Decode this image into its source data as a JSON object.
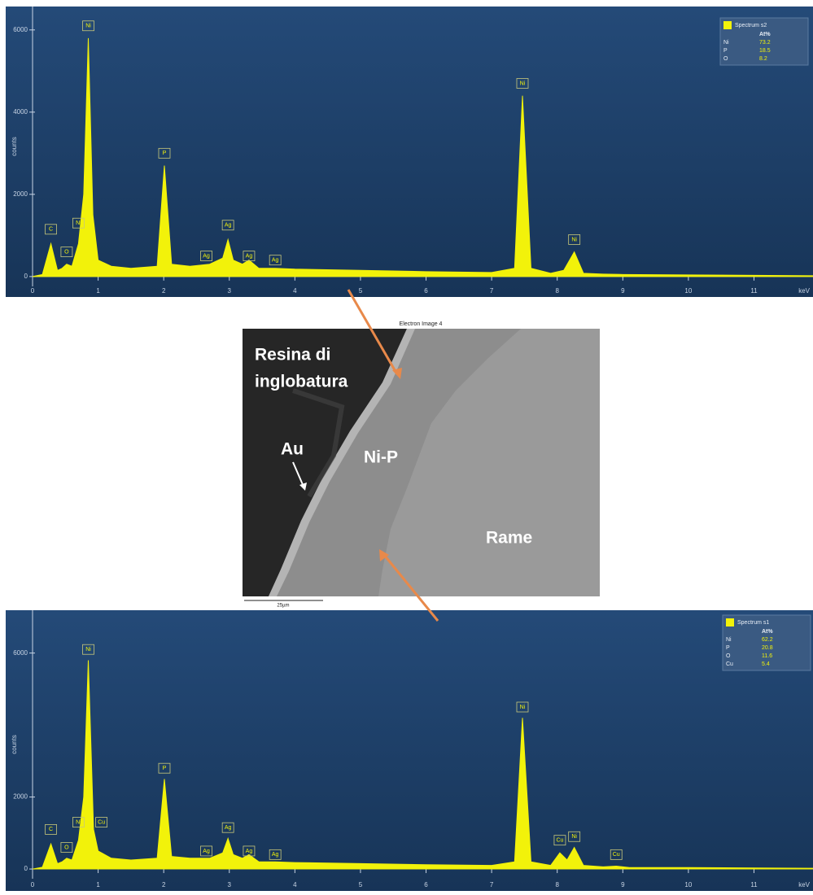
{
  "chart_data": [
    {
      "type": "line",
      "x_label": "keV",
      "y_label": "counts",
      "color": "#f2f20a",
      "x": [
        0,
        0.15,
        0.28,
        0.38,
        0.45,
        0.52,
        0.6,
        0.7,
        0.78,
        0.85,
        0.92,
        1.0,
        1.2,
        1.5,
        1.9,
        2.01,
        2.12,
        2.4,
        2.7,
        2.9,
        2.98,
        3.06,
        3.2,
        3.3,
        3.45,
        3.7,
        4.0,
        5.0,
        6.0,
        7.0,
        7.35,
        7.47,
        7.6,
        7.9,
        8.1,
        8.26,
        8.4,
        8.7,
        9,
        10,
        11,
        11.9
      ],
      "values": [
        0,
        50,
        800,
        150,
        200,
        300,
        250,
        800,
        2000,
        5800,
        1500,
        400,
        250,
        200,
        250,
        2700,
        300,
        250,
        300,
        450,
        900,
        400,
        300,
        400,
        200,
        200,
        180,
        150,
        120,
        100,
        200,
        4400,
        200,
        80,
        150,
        600,
        80,
        60,
        50,
        40,
        30,
        20
      ],
      "xlim": [
        0,
        11.9
      ],
      "ylim": [
        -240,
        6570
      ],
      "xticks": [
        0,
        1,
        2,
        3,
        4,
        5,
        6,
        7,
        8,
        9,
        10,
        11
      ],
      "yticks": [
        0,
        2000,
        4000,
        6000
      ],
      "peak_labels": [
        {
          "text": "C",
          "x": 0.28,
          "y": 1150
        },
        {
          "text": "O",
          "x": 0.52,
          "y": 600
        },
        {
          "text": "Ni",
          "x": 0.7,
          "y": 1300
        },
        {
          "text": "Ni",
          "x": 0.85,
          "y": 6100
        },
        {
          "text": "P",
          "x": 2.01,
          "y": 3000
        },
        {
          "text": "Ag",
          "x": 2.65,
          "y": 500
        },
        {
          "text": "Ag",
          "x": 2.98,
          "y": 1250
        },
        {
          "text": "Ag",
          "x": 3.3,
          "y": 500
        },
        {
          "text": "Ag",
          "x": 3.7,
          "y": 400
        },
        {
          "text": "Ni",
          "x": 7.47,
          "y": 4700
        },
        {
          "text": "Ni",
          "x": 8.26,
          "y": 900
        }
      ],
      "legend": {
        "name": "Spectrum s2",
        "header": "At%",
        "rows": [
          [
            "Ni",
            "73.2"
          ],
          [
            "P",
            "18.5"
          ],
          [
            "O",
            "8.2"
          ]
        ]
      }
    },
    {
      "type": "line",
      "x_label": "keV",
      "y_label": "counts",
      "color": "#f2f20a",
      "x": [
        0,
        0.15,
        0.28,
        0.38,
        0.45,
        0.52,
        0.6,
        0.7,
        0.78,
        0.85,
        0.93,
        1.0,
        1.2,
        1.5,
        1.9,
        2.01,
        2.12,
        2.4,
        2.7,
        2.9,
        2.98,
        3.06,
        3.2,
        3.3,
        3.45,
        3.7,
        4.0,
        5.0,
        6.0,
        7.0,
        7.35,
        7.47,
        7.6,
        7.9,
        8.04,
        8.15,
        8.26,
        8.4,
        8.7,
        8.9,
        9.1,
        10,
        11,
        11.9
      ],
      "values": [
        0,
        50,
        700,
        150,
        200,
        300,
        250,
        800,
        2000,
        5800,
        1100,
        500,
        300,
        250,
        300,
        2500,
        350,
        300,
        300,
        450,
        850,
        400,
        300,
        400,
        200,
        200,
        180,
        150,
        120,
        100,
        200,
        4200,
        200,
        100,
        450,
        250,
        600,
        100,
        60,
        80,
        40,
        40,
        30,
        20
      ],
      "xlim": [
        0,
        11.9
      ],
      "ylim": [
        -270,
        7190
      ],
      "xticks": [
        0,
        1,
        2,
        3,
        4,
        5,
        6,
        7,
        8,
        9,
        10,
        11
      ],
      "yticks": [
        0,
        2000,
        6000
      ],
      "peak_labels": [
        {
          "text": "C",
          "x": 0.28,
          "y": 1100
        },
        {
          "text": "O",
          "x": 0.52,
          "y": 600
        },
        {
          "text": "Ni",
          "x": 0.7,
          "y": 1300
        },
        {
          "text": "Cu",
          "x": 1.05,
          "y": 1300
        },
        {
          "text": "Ni",
          "x": 0.85,
          "y": 6100
        },
        {
          "text": "P",
          "x": 2.01,
          "y": 2800
        },
        {
          "text": "Ag",
          "x": 2.65,
          "y": 500
        },
        {
          "text": "Ag",
          "x": 2.98,
          "y": 1150
        },
        {
          "text": "Ag",
          "x": 3.3,
          "y": 500
        },
        {
          "text": "Ag",
          "x": 3.7,
          "y": 400
        },
        {
          "text": "Ni",
          "x": 7.47,
          "y": 4500
        },
        {
          "text": "Cu",
          "x": 8.04,
          "y": 800
        },
        {
          "text": "Ni",
          "x": 8.26,
          "y": 900
        },
        {
          "text": "Cu",
          "x": 8.9,
          "y": 400
        }
      ],
      "legend": {
        "name": "Spectrum s1",
        "header": "At%",
        "rows": [
          [
            "Ni",
            "62.2"
          ],
          [
            "P",
            "20.8"
          ],
          [
            "O",
            "11.6"
          ],
          [
            "Cu",
            "5.4"
          ]
        ]
      }
    }
  ],
  "image": {
    "title": "Electron Image 4",
    "labels": [
      "Resina di",
      "inglobatura",
      "Au",
      "Ni-P",
      "Rame"
    ],
    "scale": "25µm"
  }
}
